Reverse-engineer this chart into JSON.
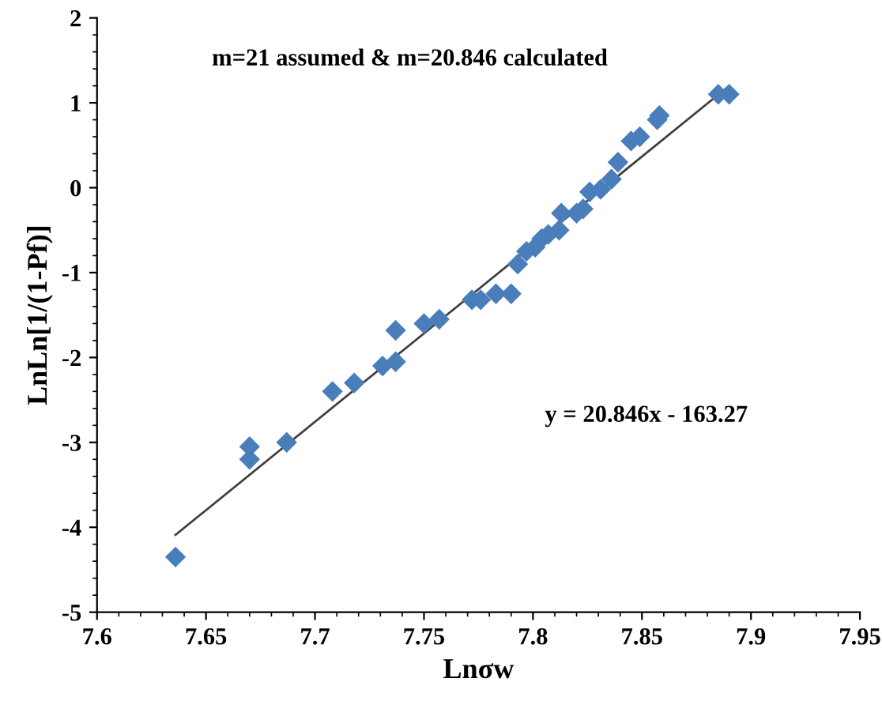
{
  "chart_data": {
    "type": "scatter",
    "xlabel": "Lnσw",
    "ylabel": "LnLn[1/(1-Pf)]",
    "annotations": [
      "m=21 assumed & m=20.846 calculated",
      "y = 20.846x - 163.27"
    ],
    "series": [
      {
        "color": "#4a7ebb",
        "marker": "diamond",
        "x": [
          7.636,
          7.67,
          7.67,
          7.687,
          7.708,
          7.718,
          7.731,
          7.737,
          7.737,
          7.75,
          7.757,
          7.772,
          7.776,
          7.783,
          7.79,
          7.793,
          7.797,
          7.801,
          7.804,
          7.807,
          7.812,
          7.813,
          7.82,
          7.823,
          7.826,
          7.831,
          7.836,
          7.839,
          7.845,
          7.849,
          7.857,
          7.858,
          7.885,
          7.89
        ],
        "values": [
          -4.35,
          -3.05,
          -3.2,
          -3.0,
          -2.4,
          -2.3,
          -2.1,
          -1.68,
          -2.05,
          -1.6,
          -1.55,
          -1.32,
          -1.32,
          -1.25,
          -1.25,
          -0.9,
          -0.75,
          -0.7,
          -0.6,
          -0.55,
          -0.5,
          -0.3,
          -0.3,
          -0.25,
          -0.05,
          -0.02,
          0.1,
          0.3,
          0.55,
          0.6,
          0.8,
          0.85,
          1.1,
          1.1
        ]
      },
      {
        "type": "line",
        "color": "#404040",
        "x": [
          7.636,
          7.89
        ],
        "values": [
          -4.09,
          1.2
        ]
      }
    ],
    "xlim": [
      7.6,
      7.95
    ],
    "xticks": [
      {
        "value": 7.6,
        "label": "7.6"
      },
      {
        "value": 7.65,
        "label": "7.65"
      },
      {
        "value": 7.7,
        "label": "7.7"
      },
      {
        "value": 7.75,
        "label": "7.75"
      },
      {
        "value": 7.8,
        "label": "7.8"
      },
      {
        "value": 7.85,
        "label": "7.85"
      },
      {
        "value": 7.9,
        "label": "7.9"
      },
      {
        "value": 7.95,
        "label": "7.95"
      }
    ],
    "ylim": [
      -5,
      2
    ],
    "yticks": [
      -5,
      -4,
      -3,
      -2,
      -1,
      0,
      1,
      2
    ],
    "grid": false,
    "legend": false
  }
}
